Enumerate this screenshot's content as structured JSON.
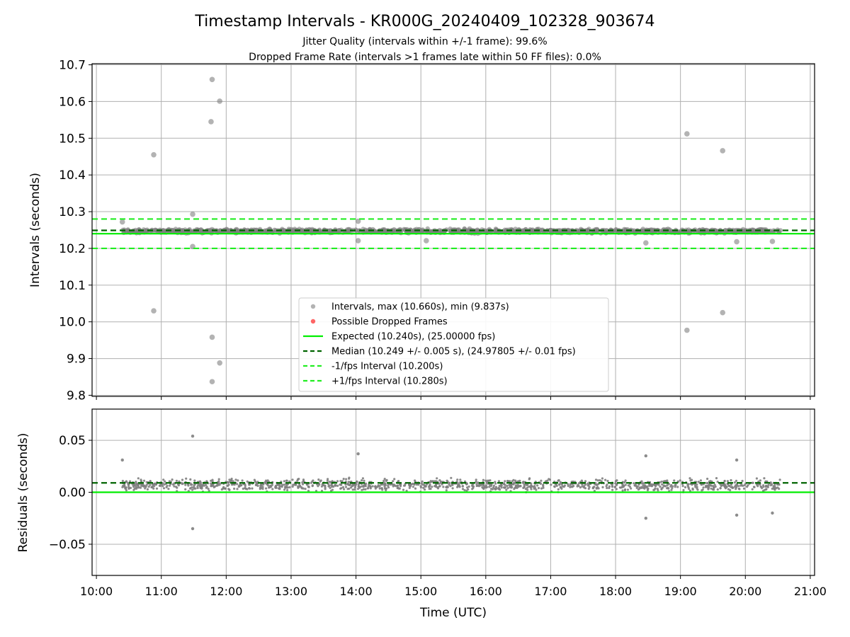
{
  "title": "Timestamp Intervals - KR000G_20240409_102328_903674",
  "subtitle_lines": [
    "Jitter Quality (intervals within +/-1 frame): 99.6%",
    "Dropped Frame Rate (intervals >1 frames late within 50 FF files): 0.0%"
  ],
  "colors": {
    "points": "#808080",
    "dropped": "#ff0000",
    "expected": "#00ee00",
    "median": "#006400",
    "bounds": "#22ee22",
    "grid": "#b0b0b0"
  },
  "chart_data": [
    {
      "type": "scatter",
      "panel": "top",
      "ylabel": "Intervals (seconds)",
      "xlim": [
        "09:56",
        "21:04"
      ],
      "ylim": [
        9.797,
        10.703
      ],
      "xticks": [
        "10:00",
        "11:00",
        "12:00",
        "13:00",
        "14:00",
        "15:00",
        "16:00",
        "17:00",
        "18:00",
        "19:00",
        "20:00",
        "21:00"
      ],
      "yticks": [
        "9.8",
        "9.9",
        "10.0",
        "10.1",
        "10.2",
        "10.3",
        "10.4",
        "10.5",
        "10.6",
        "10.7"
      ],
      "grid": true,
      "legend_position": "lower center",
      "legend": [
        "Intervals, max (10.660s), min (9.837s)",
        "Possible Dropped Frames",
        "Expected (10.240s), (25.00000 fps)",
        "Median (10.249 +/- 0.005 s), (24.97805 +/- 0.01 fps)",
        "-1/fps Interval (10.200s)",
        "+1/fps Interval (10.280s)"
      ],
      "hlines": {
        "expected": 10.24,
        "median": 10.249,
        "minus_1_fps": 10.2,
        "plus_1_fps": 10.28
      },
      "band": {
        "center": 10.247,
        "spread": 0.008,
        "x_start": "10:24",
        "x_end": "20:33"
      },
      "outliers": [
        {
          "x": "10:24",
          "y": 10.272
        },
        {
          "x": "10:53",
          "y": 10.455
        },
        {
          "x": "10:53",
          "y": 10.03
        },
        {
          "x": "11:29",
          "y": 10.293
        },
        {
          "x": "11:29",
          "y": 10.205
        },
        {
          "x": "11:47",
          "y": 10.66
        },
        {
          "x": "11:46",
          "y": 10.545
        },
        {
          "x": "11:54",
          "y": 10.601
        },
        {
          "x": "11:47",
          "y": 9.958
        },
        {
          "x": "11:54",
          "y": 9.888
        },
        {
          "x": "11:47",
          "y": 9.837
        },
        {
          "x": "14:02",
          "y": 10.274
        },
        {
          "x": "14:02",
          "y": 10.221
        },
        {
          "x": "15:05",
          "y": 10.221
        },
        {
          "x": "18:28",
          "y": 10.215
        },
        {
          "x": "19:06",
          "y": 10.512
        },
        {
          "x": "19:06",
          "y": 9.977
        },
        {
          "x": "19:39",
          "y": 10.466
        },
        {
          "x": "19:39",
          "y": 10.025
        },
        {
          "x": "19:52",
          "y": 10.218
        },
        {
          "x": "20:25",
          "y": 10.219
        }
      ]
    },
    {
      "type": "scatter",
      "panel": "bottom",
      "xlabel": "Time (UTC)",
      "ylabel": "Residuals (seconds)",
      "xlim": [
        "09:56",
        "21:04"
      ],
      "ylim": [
        -0.08,
        0.08
      ],
      "xticks": [
        "10:00",
        "11:00",
        "12:00",
        "13:00",
        "14:00",
        "15:00",
        "16:00",
        "17:00",
        "18:00",
        "19:00",
        "20:00",
        "21:00"
      ],
      "yticks": [
        "0.05",
        "0.00",
        "−0.05"
      ],
      "grid": true,
      "hlines": {
        "zero": 0.0,
        "median": 0.009
      },
      "band": {
        "center": 0.007,
        "spread": 0.008,
        "x_start": "10:24",
        "x_end": "20:33"
      },
      "outliers": [
        {
          "x": "10:24",
          "y": 0.031
        },
        {
          "x": "11:29",
          "y": 0.054
        },
        {
          "x": "11:29",
          "y": -0.035
        },
        {
          "x": "14:02",
          "y": 0.037
        },
        {
          "x": "18:28",
          "y": -0.025
        },
        {
          "x": "18:28",
          "y": 0.035
        },
        {
          "x": "19:52",
          "y": -0.022
        },
        {
          "x": "19:52",
          "y": 0.031
        },
        {
          "x": "20:25",
          "y": -0.02
        }
      ]
    }
  ]
}
